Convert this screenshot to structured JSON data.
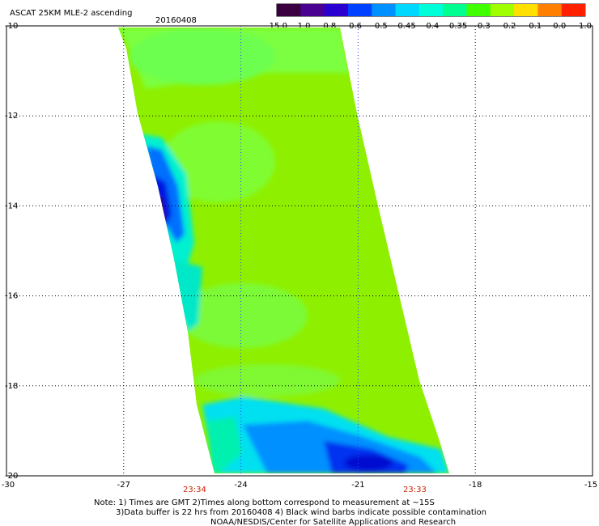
{
  "header": {
    "title": "ASCAT 25KM MLE-2 ascending",
    "date": "20160408"
  },
  "colorbar": {
    "labels": [
      "-15.0",
      "-1.0",
      "-0.8",
      "-0.6",
      "-0.5",
      "-0.45",
      "-0.4",
      "-0.35",
      "-0.3",
      "-0.2",
      "-0.1",
      "0.0",
      "1.0"
    ],
    "colors": [
      "#3a0040",
      "#4a0090",
      "#2a00d0",
      "#0040ff",
      "#0090ff",
      "#00d8ff",
      "#00ffd8",
      "#00ff90",
      "#40ff00",
      "#a0ff00",
      "#ffe000",
      "#ff8000",
      "#ff2000"
    ]
  },
  "axes": {
    "lat_labels": [
      "-10",
      "-12",
      "-14",
      "-16",
      "-18",
      "-20"
    ],
    "lon_labels": [
      "-30",
      "-27",
      "-24",
      "-21",
      "-18",
      "-15"
    ],
    "lon_range": [
      -30,
      -15
    ],
    "lat_range": [
      -10,
      -20
    ]
  },
  "swath_times": [
    "23:34",
    "23:33"
  ],
  "footer": {
    "line1": "Note: 1) Times are GMT 2)Times along bottom correspond to measurement at ~15S",
    "line2": "3)Data buffer is 22 hrs from 20160408 4) Black wind barbs indicate possible contamination",
    "line3": "NOAA/NESDIS/Center for Satellite Applications and Research"
  }
}
